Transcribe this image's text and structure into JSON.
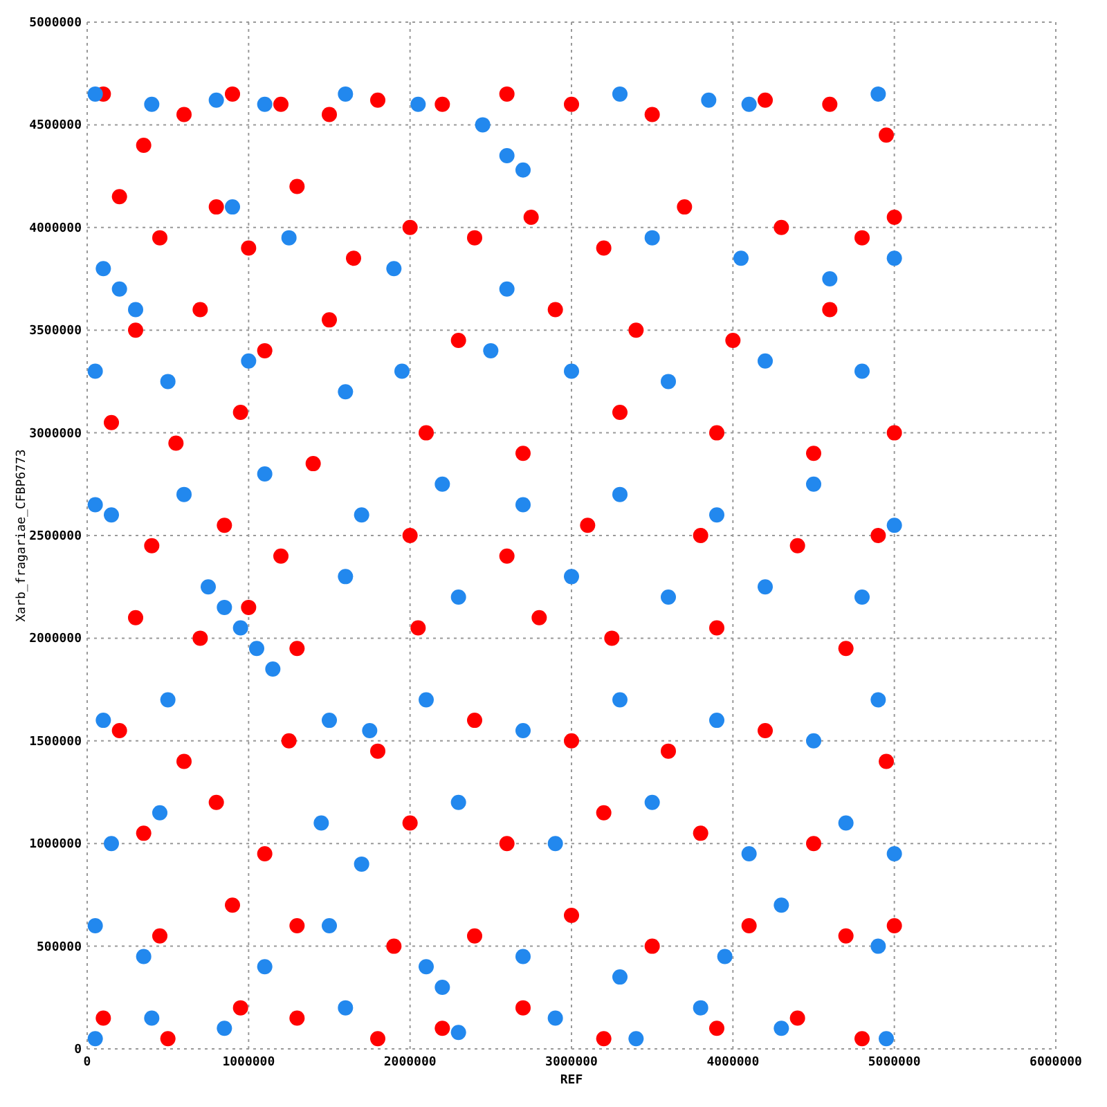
{
  "chart_data": {
    "type": "scatter",
    "xlabel": "REF",
    "ylabel": "Xarb_fragariae_CFBP6773",
    "xlim": [
      0,
      6000000
    ],
    "ylim": [
      0,
      5000000
    ],
    "xticks": [
      0,
      1000000,
      2000000,
      3000000,
      4000000,
      5000000,
      6000000
    ],
    "yticks": [
      0,
      500000,
      1000000,
      1500000,
      2000000,
      2500000,
      3000000,
      3500000,
      4000000,
      4500000,
      5000000
    ],
    "grid": true,
    "marker": "circle",
    "series": [
      {
        "color": "#ff0000",
        "x": [
          100000,
          350000,
          600000,
          900000,
          1200000,
          1500000,
          1800000,
          2200000,
          2600000,
          3000000,
          3500000,
          4200000,
          4600000,
          4950000,
          200000,
          450000,
          800000,
          1000000,
          1300000,
          1650000,
          2000000,
          2400000,
          2750000,
          3200000,
          3700000,
          4300000,
          4800000,
          5000000,
          300000,
          700000,
          1100000,
          1500000,
          2300000,
          2900000,
          3400000,
          4000000,
          4600000,
          150000,
          550000,
          950000,
          1400000,
          2100000,
          2700000,
          3300000,
          3900000,
          4500000,
          5000000,
          400000,
          850000,
          1200000,
          2000000,
          2600000,
          3100000,
          3800000,
          4400000,
          4900000,
          300000,
          700000,
          1000000,
          1300000,
          2050000,
          2800000,
          3250000,
          3900000,
          4700000,
          200000,
          600000,
          1250000,
          1800000,
          2400000,
          3000000,
          3600000,
          4200000,
          4950000,
          350000,
          800000,
          1100000,
          2000000,
          2600000,
          3200000,
          3800000,
          4500000,
          450000,
          900000,
          1300000,
          1900000,
          2400000,
          3000000,
          3500000,
          4100000,
          4700000,
          5000000,
          100000,
          500000,
          950000,
          1300000,
          1800000,
          2200000,
          2700000,
          3200000,
          3900000,
          4400000,
          4800000
        ],
        "values": [
          4650000,
          4400000,
          4550000,
          4650000,
          4600000,
          4550000,
          4620000,
          4600000,
          4650000,
          4600000,
          4550000,
          4620000,
          4600000,
          4450000,
          4150000,
          3950000,
          4100000,
          3900000,
          4200000,
          3850000,
          4000000,
          3950000,
          4050000,
          3900000,
          4100000,
          4000000,
          3950000,
          4050000,
          3500000,
          3600000,
          3400000,
          3550000,
          3450000,
          3600000,
          3500000,
          3450000,
          3600000,
          3050000,
          2950000,
          3100000,
          2850000,
          3000000,
          2900000,
          3100000,
          3000000,
          2900000,
          3000000,
          2450000,
          2550000,
          2400000,
          2500000,
          2400000,
          2550000,
          2500000,
          2450000,
          2500000,
          2100000,
          2000000,
          2150000,
          1950000,
          2050000,
          2100000,
          2000000,
          2050000,
          1950000,
          1550000,
          1400000,
          1500000,
          1450000,
          1600000,
          1500000,
          1450000,
          1550000,
          1400000,
          1050000,
          1200000,
          950000,
          1100000,
          1000000,
          1150000,
          1050000,
          1000000,
          550000,
          700000,
          600000,
          500000,
          550000,
          650000,
          500000,
          600000,
          550000,
          600000,
          150000,
          50000,
          200000,
          150000,
          50000,
          100000,
          200000,
          50000,
          100000,
          150000,
          50000
        ]
      },
      {
        "color": "#2288ee",
        "x": [
          50000,
          400000,
          800000,
          1100000,
          1600000,
          2050000,
          2450000,
          2600000,
          2700000,
          3300000,
          3850000,
          4100000,
          4900000,
          100000,
          200000,
          300000,
          900000,
          1250000,
          1900000,
          2600000,
          3500000,
          4050000,
          4600000,
          5000000,
          50000,
          500000,
          1000000,
          1600000,
          1950000,
          2500000,
          3000000,
          3600000,
          4200000,
          4800000,
          50000,
          150000,
          600000,
          1100000,
          1700000,
          2200000,
          2700000,
          3300000,
          3900000,
          4500000,
          5000000,
          750000,
          850000,
          950000,
          1050000,
          1150000,
          1600000,
          2300000,
          3000000,
          3600000,
          4200000,
          4800000,
          100000,
          500000,
          1500000,
          1750000,
          2100000,
          2700000,
          3300000,
          3900000,
          4500000,
          4900000,
          150000,
          450000,
          1450000,
          1700000,
          2300000,
          2900000,
          3500000,
          4100000,
          4700000,
          5000000,
          50000,
          350000,
          1100000,
          1500000,
          2100000,
          2200000,
          2700000,
          3300000,
          3950000,
          4300000,
          4900000,
          50000,
          400000,
          850000,
          1600000,
          2300000,
          2900000,
          3400000,
          3800000,
          4300000,
          4950000
        ],
        "values": [
          4650000,
          4600000,
          4620000,
          4600000,
          4650000,
          4600000,
          4500000,
          4350000,
          4280000,
          4650000,
          4620000,
          4600000,
          4650000,
          3800000,
          3700000,
          3600000,
          4100000,
          3950000,
          3800000,
          3700000,
          3950000,
          3850000,
          3750000,
          3850000,
          3300000,
          3250000,
          3350000,
          3200000,
          3300000,
          3400000,
          3300000,
          3250000,
          3350000,
          3300000,
          2650000,
          2600000,
          2700000,
          2800000,
          2600000,
          2750000,
          2650000,
          2700000,
          2600000,
          2750000,
          2550000,
          2250000,
          2150000,
          2050000,
          1950000,
          1850000,
          2300000,
          2200000,
          2300000,
          2200000,
          2250000,
          2200000,
          1600000,
          1700000,
          1600000,
          1550000,
          1700000,
          1550000,
          1700000,
          1600000,
          1500000,
          1700000,
          1000000,
          1150000,
          1100000,
          900000,
          1200000,
          1000000,
          1200000,
          950000,
          1100000,
          950000,
          600000,
          450000,
          400000,
          600000,
          400000,
          300000,
          450000,
          350000,
          450000,
          700000,
          500000,
          50000,
          150000,
          100000,
          200000,
          80000,
          150000,
          50000,
          200000,
          100000,
          50000
        ]
      }
    ]
  }
}
